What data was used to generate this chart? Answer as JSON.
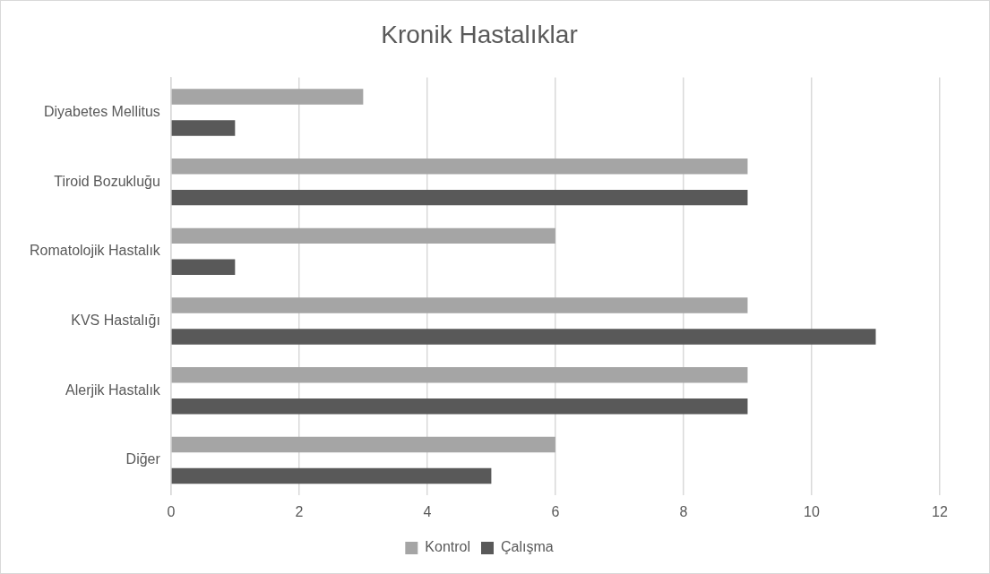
{
  "chart_data": {
    "type": "bar",
    "orientation": "horizontal",
    "title": "Kronik Hastalıklar",
    "categories": [
      "Diyabetes Mellitus",
      "Tiroid Bozukluğu",
      "Romatolojik Hastalık",
      "KVS Hastalığı",
      "Alerjik Hastalık",
      "Diğer"
    ],
    "series": [
      {
        "name": "Kontrol",
        "color": "#a5a5a5",
        "values": [
          3,
          9,
          6,
          9,
          9,
          6
        ]
      },
      {
        "name": "Çalışma",
        "color": "#595959",
        "values": [
          1,
          9,
          1,
          11,
          9,
          5
        ]
      }
    ],
    "xlim": [
      0,
      12
    ],
    "xticks": [
      0,
      2,
      4,
      6,
      8,
      10,
      12
    ],
    "grid": "x",
    "legend": "bottom"
  }
}
